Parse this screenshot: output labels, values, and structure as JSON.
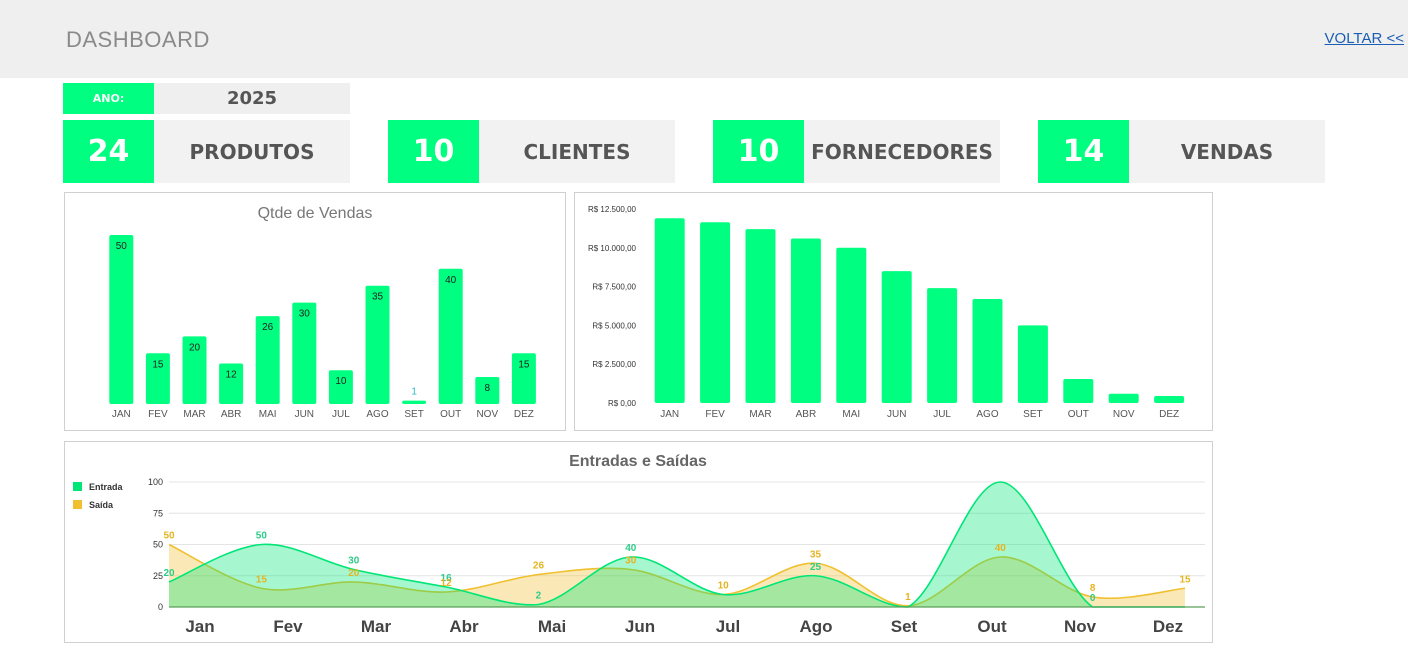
{
  "header": {
    "title": "DASHBOARD",
    "back_link": "VOLTAR <<"
  },
  "year": {
    "label": "ANO:",
    "value": "2025"
  },
  "kpis": [
    {
      "value": "24",
      "label": "PRODUTOS"
    },
    {
      "value": "10",
      "label": "CLIENTES"
    },
    {
      "value": "10",
      "label": "FORNECEDORES"
    },
    {
      "value": "14",
      "label": "VENDAS"
    }
  ],
  "colors": {
    "accent": "#00ff80",
    "entrada": "#00e676",
    "saida": "#f0c030"
  },
  "chart_data": [
    {
      "type": "bar",
      "title": "Qtde de Vendas",
      "categories": [
        "JAN",
        "FEV",
        "MAR",
        "ABR",
        "MAI",
        "JUN",
        "JUL",
        "AGO",
        "SET",
        "OUT",
        "NOV",
        "DEZ"
      ],
      "values": [
        50,
        15,
        20,
        12,
        26,
        30,
        10,
        35,
        1,
        40,
        8,
        15
      ],
      "ylim": [
        0,
        50
      ]
    },
    {
      "type": "bar",
      "title": "",
      "categories": [
        "JAN",
        "FEV",
        "MAR",
        "ABR",
        "MAI",
        "JUN",
        "JUL",
        "AGO",
        "SET",
        "OUT",
        "NOV",
        "DEZ"
      ],
      "values": [
        11900,
        11650,
        11200,
        10600,
        10000,
        8500,
        7400,
        6700,
        5000,
        1550,
        600,
        450
      ],
      "yticks": [
        "R$ 0,00",
        "R$ 2.500,00",
        "R$ 5.000,00",
        "R$ 7.500,00",
        "R$ 10.000,00",
        "R$ 12.500,00"
      ],
      "ylim": [
        0,
        12500
      ]
    },
    {
      "type": "area",
      "title": "Entradas e Saídas",
      "categories": [
        "Jan",
        "Fev",
        "Mar",
        "Abr",
        "Mai",
        "Jun",
        "Jul",
        "Ago",
        "Set",
        "Out",
        "Nov",
        "Dez"
      ],
      "yticks": [
        "0",
        "25",
        "50",
        "75",
        "100"
      ],
      "ylim": [
        0,
        100
      ],
      "legend_position": "top-left",
      "series": [
        {
          "name": "Entrada",
          "values": [
            20,
            50,
            30,
            16,
            2,
            40,
            10,
            25,
            0,
            100,
            0,
            0
          ],
          "labels": [
            "20",
            "50",
            "30",
            "16",
            "2",
            "40",
            "",
            "25",
            "",
            "",
            "0",
            ""
          ]
        },
        {
          "name": "Saída",
          "values": [
            50,
            15,
            20,
            12,
            26,
            30,
            10,
            35,
            1,
            40,
            8,
            15
          ],
          "labels": [
            "50",
            "15",
            "20",
            "12",
            "26",
            "30",
            "10",
            "35",
            "1",
            "40",
            "8",
            "15"
          ]
        }
      ]
    }
  ]
}
